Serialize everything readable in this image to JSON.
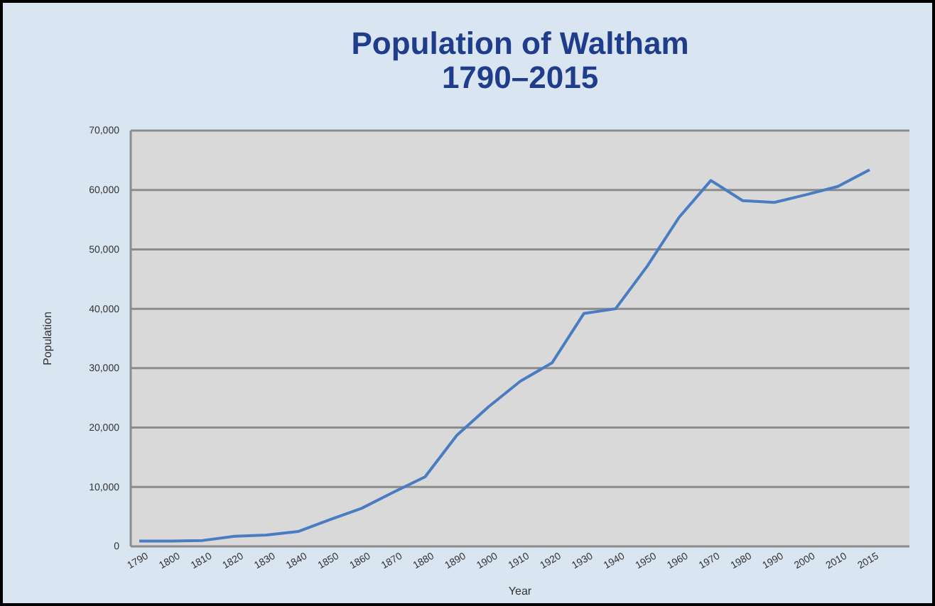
{
  "chart_data": {
    "type": "line",
    "title": "Population of Waltham\n1790–2015",
    "xlabel": "Year",
    "ylabel": "Population",
    "categories": [
      "1790",
      "1800",
      "1810",
      "1820",
      "1830",
      "1840",
      "1850",
      "1860",
      "1870",
      "1880",
      "1890",
      "1900",
      "1910",
      "1920",
      "1930",
      "1940",
      "1950",
      "1960",
      "1970",
      "1980",
      "1990",
      "2000",
      "2010",
      "2015"
    ],
    "series": [
      {
        "color": "#4a7cc2",
        "values": [
          900,
          900,
          1000,
          1700,
          1900,
          2500,
          4500,
          6400,
          9100,
          11700,
          18700,
          23500,
          27800,
          30900,
          39200,
          40000,
          47200,
          55400,
          61600,
          58200,
          57900,
          59200,
          60600,
          63400
        ]
      }
    ],
    "ylim": [
      0,
      70000
    ],
    "yticks": [
      {
        "value": 0,
        "label": "0"
      },
      {
        "value": 10000,
        "label": "10,000"
      },
      {
        "value": 20000,
        "label": "20,000"
      },
      {
        "value": 30000,
        "label": "30,000"
      },
      {
        "value": 40000,
        "label": "40,000"
      },
      {
        "value": 50000,
        "label": "50,000"
      },
      {
        "value": 60000,
        "label": "60,000"
      },
      {
        "value": 70000,
        "label": "70,000"
      }
    ],
    "grid": "y",
    "marker": "none",
    "line_style": "solid"
  }
}
